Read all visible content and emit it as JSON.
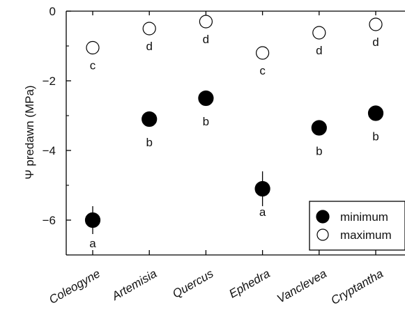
{
  "chart_data": {
    "type": "scatter",
    "ylabel": "Ψ predawn (MPa)",
    "ylim": [
      -7,
      0
    ],
    "yticks": [
      0,
      -2,
      -4,
      -6
    ],
    "ytick_labels": [
      "0",
      "−2",
      "−4",
      "−6"
    ],
    "categories": [
      "Coleogyne",
      "Artemisia",
      "Quercus",
      "Ephedra",
      "Vanclevea",
      "Cryptantha"
    ],
    "series": [
      {
        "name": "minimum",
        "marker": "filled-circle",
        "values": [
          -6.0,
          -3.1,
          -2.5,
          -5.1,
          -3.35,
          -2.93
        ],
        "error": [
          0.4,
          0.1,
          0.1,
          0.5,
          0.1,
          0.1
        ],
        "letters": [
          "a",
          "b",
          "b",
          "a",
          "b",
          "b"
        ]
      },
      {
        "name": "maximum",
        "marker": "open-circle",
        "values": [
          -1.05,
          -0.5,
          -0.3,
          -1.2,
          -0.62,
          -0.38
        ],
        "error": [
          0,
          0,
          0,
          0,
          0,
          0
        ],
        "letters": [
          "c",
          "d",
          "d",
          "c",
          "d",
          "d"
        ]
      }
    ],
    "legend": {
      "position": "bottom-right",
      "entries": [
        "minimum",
        "maximum"
      ]
    },
    "colors": {
      "minimum": "#000000",
      "maximum": "#ffffff",
      "axis": "#000000"
    },
    "grid": false
  }
}
